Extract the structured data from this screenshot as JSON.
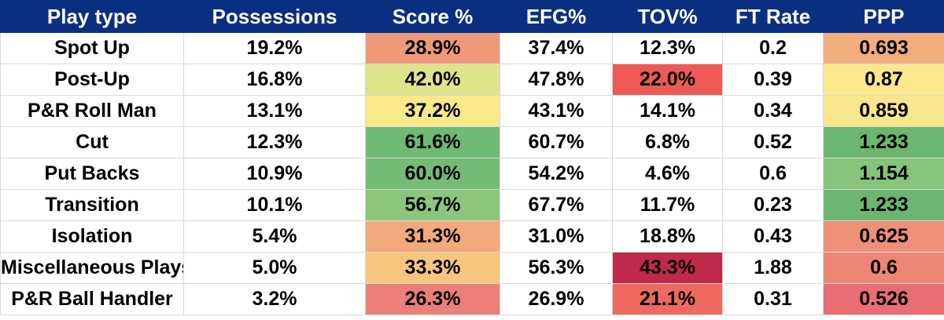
{
  "chart_data": {
    "type": "table",
    "columns": [
      "Play type",
      "Possessions",
      "Score %",
      "EFG%",
      "TOV%",
      "FT Rate",
      "PPP"
    ],
    "rows": [
      [
        "Spot Up",
        "19.2%",
        "28.9%",
        "37.4%",
        "12.3%",
        "0.2",
        "0.693"
      ],
      [
        "Post-Up",
        "16.8%",
        "42.0%",
        "47.8%",
        "22.0%",
        "0.39",
        "0.87"
      ],
      [
        "P&R Roll Man",
        "13.1%",
        "37.2%",
        "43.1%",
        "14.1%",
        "0.34",
        "0.859"
      ],
      [
        "Cut",
        "12.3%",
        "61.6%",
        "60.7%",
        "6.8%",
        "0.52",
        "1.233"
      ],
      [
        "Put Backs",
        "10.9%",
        "60.0%",
        "54.2%",
        "4.6%",
        "0.6",
        "1.154"
      ],
      [
        "Transition",
        "10.1%",
        "56.7%",
        "67.7%",
        "11.7%",
        "0.23",
        "1.233"
      ],
      [
        "Isolation",
        "5.4%",
        "31.3%",
        "31.0%",
        "18.8%",
        "0.43",
        "0.625"
      ],
      [
        "Miscellaneous Plays",
        "5.0%",
        "33.3%",
        "56.3%",
        "43.3%",
        "1.88",
        "0.6"
      ],
      [
        "P&R Ball Handler",
        "3.2%",
        "26.3%",
        "26.9%",
        "21.1%",
        "0.31",
        "0.526"
      ]
    ],
    "cell_colors": {
      "score_pct": [
        "#ee9a7a",
        "#dfe38a",
        "#fbe889",
        "#6fba74",
        "#74bc76",
        "#8cc67d",
        "#f2a97c",
        "#f6c67f",
        "#ec7f79"
      ],
      "tov_pct": [
        "#ffffff",
        "#ec5a55",
        "#ffffff",
        "#ffffff",
        "#ffffff",
        "#ffffff",
        "#ffffff",
        "#c0294a",
        "#ee6a60"
      ],
      "ppp": [
        "#f2ad7d",
        "#fce88a",
        "#fae68a",
        "#6db671",
        "#86c47b",
        "#6db671",
        "#ee8f77",
        "#ee8676",
        "#e96e73"
      ]
    },
    "header_color": "#0b2f80"
  }
}
